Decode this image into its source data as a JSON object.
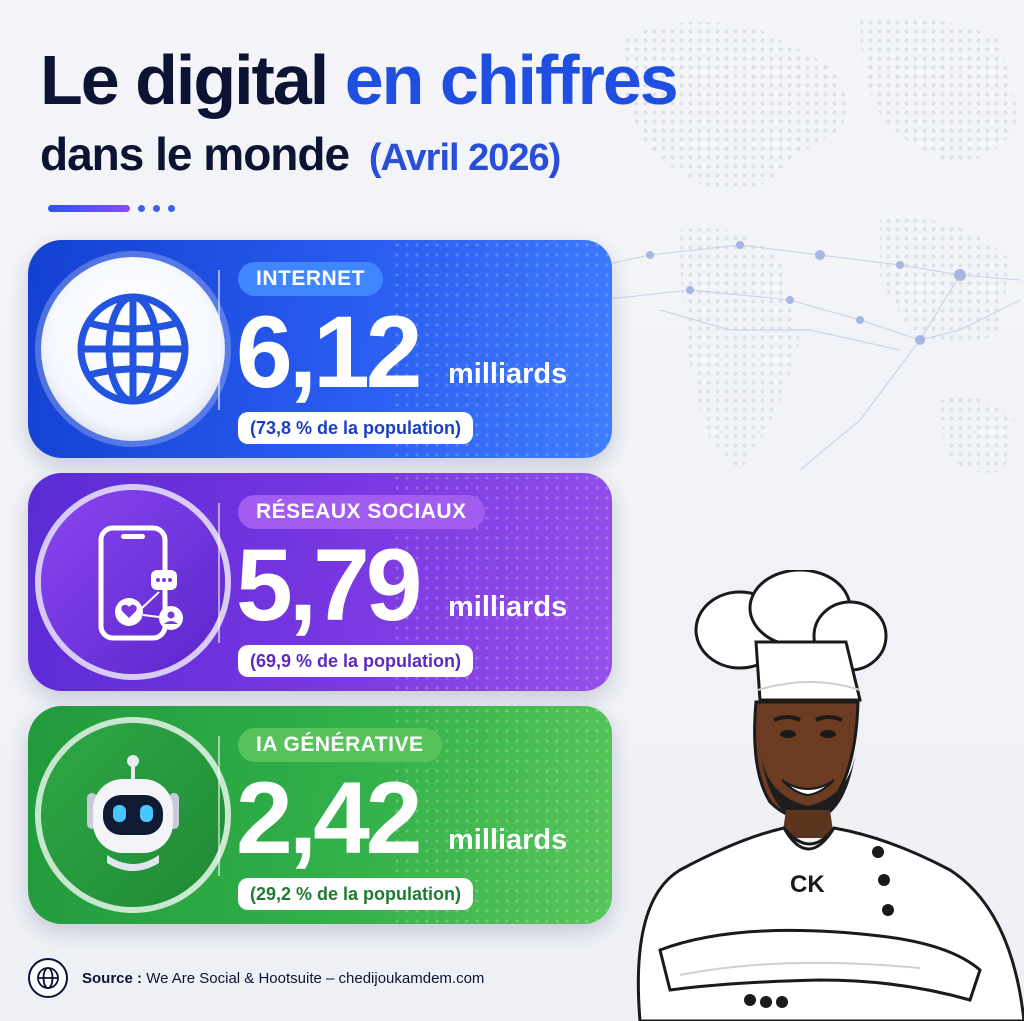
{
  "title": {
    "part1": "Le digital",
    "part2": "en chiffres",
    "line2": "dans le monde",
    "date": "(Avril 2026)"
  },
  "cards": [
    {
      "id": "internet",
      "label": "INTERNET",
      "value": "6,12",
      "unit": "milliards",
      "population": "(73,8 % de la population)",
      "icon": "globe-icon"
    },
    {
      "id": "social",
      "label": "RÉSEAUX SOCIAUX",
      "value": "5,79",
      "unit": "milliards",
      "population": "(69,9 % de la population)",
      "icon": "smartphone-social-icon"
    },
    {
      "id": "ia",
      "label": "IA GÉNÉRATIVE",
      "value": "2,42",
      "unit": "milliards",
      "population": "(29,2 % de la population)",
      "icon": "robot-icon"
    }
  ],
  "source": {
    "label": "Source :",
    "text": "We Are Social & Hootsuite – chedijoukamdem.com"
  },
  "chef": {
    "initials": "CK"
  },
  "colors": {
    "title_dark": "#0d1433",
    "title_blue": "#1f4fe0",
    "internet": "#2a5cf0",
    "social": "#7636e0",
    "ia": "#32b049"
  }
}
